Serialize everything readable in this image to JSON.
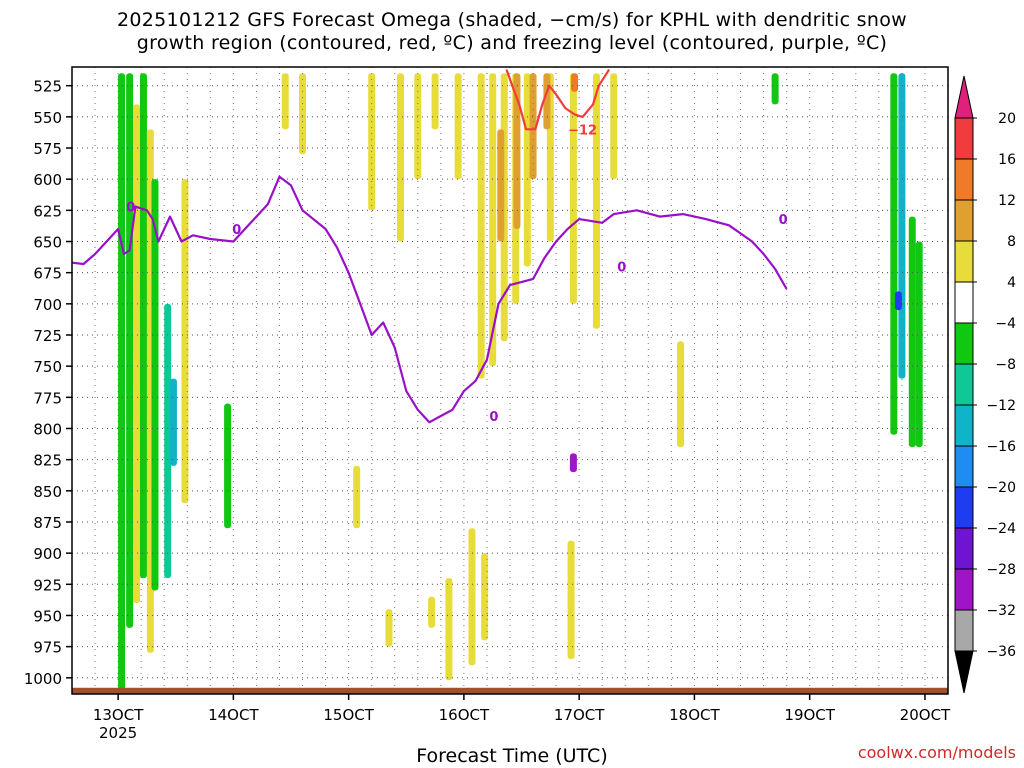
{
  "chart_data": {
    "type": "heatmap",
    "title_line1": "2025101212 GFS Forecast Omega (shaded, −cm/s) for KPHL with dendritic snow",
    "title_line2": "growth region (contoured, red, ºC) and freezing level (contoured, purple, ºC)",
    "xlabel": "Forecast Time (UTC)",
    "credit": "coolwx.com/models",
    "x_axis": {
      "unit": "hours since 2025-10-13 00 UTC",
      "range": [
        -4,
        72
      ],
      "ticks": [
        {
          "hour": 0,
          "label": "13OCT",
          "sublabel": "2025"
        },
        {
          "hour": 10,
          "label": "14OCT"
        },
        {
          "hour": 20,
          "label": "15OCT"
        },
        {
          "hour": 30,
          "label": "16OCT"
        },
        {
          "hour": 40,
          "label": "17OCT"
        },
        {
          "hour": 50,
          "label": "18OCT"
        },
        {
          "hour": 60,
          "label": "19OCT"
        },
        {
          "hour": 70,
          "label": "20OCT"
        }
      ]
    },
    "y_axis": {
      "unit": "hPa",
      "range": [
        1013,
        510
      ],
      "ticks": [
        525,
        550,
        575,
        600,
        625,
        650,
        675,
        700,
        725,
        750,
        775,
        800,
        825,
        850,
        875,
        900,
        925,
        950,
        975,
        1000
      ],
      "grid": true
    },
    "colorbar": {
      "labels": [
        "20",
        "16",
        "12",
        "8",
        "4",
        "−4",
        "−8",
        "−12",
        "−16",
        "−20",
        "−24",
        "−28",
        "−32",
        "−36"
      ],
      "colors": [
        "#e0207a",
        "#f03c3c",
        "#f07a28",
        "#e0a030",
        "#e8dc3a",
        "#ffffff",
        "#10c810",
        "#10c896",
        "#10b4c8",
        "#1e8cf0",
        "#1e3cf0",
        "#6e14d2",
        "#a014c8",
        "#a8a8a8",
        "#000000"
      ]
    },
    "shading": [
      {
        "t": 0.3,
        "p1": 515,
        "p2": 1012,
        "color": "#10c810"
      },
      {
        "t": 1.0,
        "p1": 515,
        "p2": 960,
        "color": "#10c810"
      },
      {
        "t": 1.6,
        "p1": 540,
        "p2": 940,
        "color": "#e8dc3a"
      },
      {
        "t": 2.2,
        "p1": 515,
        "p2": 920,
        "color": "#10c810"
      },
      {
        "t": 2.8,
        "p1": 560,
        "p2": 980,
        "color": "#e8dc3a"
      },
      {
        "t": 3.2,
        "p1": 600,
        "p2": 930,
        "color": "#10c810"
      },
      {
        "t": 4.3,
        "p1": 700,
        "p2": 920,
        "color": "#10c896"
      },
      {
        "t": 4.8,
        "p1": 760,
        "p2": 830,
        "color": "#10b4c8"
      },
      {
        "t": 5.8,
        "p1": 600,
        "p2": 860,
        "color": "#e8dc3a"
      },
      {
        "t": 9.5,
        "p1": 780,
        "p2": 880,
        "color": "#10c810"
      },
      {
        "t": 14.5,
        "p1": 515,
        "p2": 560,
        "color": "#e8dc3a"
      },
      {
        "t": 16.0,
        "p1": 515,
        "p2": 580,
        "color": "#e8dc3a"
      },
      {
        "t": 20.7,
        "p1": 830,
        "p2": 880,
        "color": "#e8dc3a"
      },
      {
        "t": 22.0,
        "p1": 515,
        "p2": 625,
        "color": "#e8dc3a"
      },
      {
        "t": 24.5,
        "p1": 515,
        "p2": 650,
        "color": "#e8dc3a"
      },
      {
        "t": 26.0,
        "p1": 515,
        "p2": 600,
        "color": "#e8dc3a"
      },
      {
        "t": 27.5,
        "p1": 515,
        "p2": 560,
        "color": "#e8dc3a"
      },
      {
        "t": 29.5,
        "p1": 515,
        "p2": 600,
        "color": "#e8dc3a"
      },
      {
        "t": 31.5,
        "p1": 515,
        "p2": 760,
        "color": "#e8dc3a"
      },
      {
        "t": 32.5,
        "p1": 515,
        "p2": 750,
        "color": "#e8dc3a"
      },
      {
        "t": 33.5,
        "p1": 515,
        "p2": 730,
        "color": "#e8dc3a"
      },
      {
        "t": 34.5,
        "p1": 515,
        "p2": 700,
        "color": "#e8dc3a"
      },
      {
        "t": 35.5,
        "p1": 515,
        "p2": 670,
        "color": "#e8dc3a"
      },
      {
        "t": 37.5,
        "p1": 515,
        "p2": 650,
        "color": "#e8dc3a"
      },
      {
        "t": 39.5,
        "p1": 515,
        "p2": 700,
        "color": "#e8dc3a"
      },
      {
        "t": 41.5,
        "p1": 515,
        "p2": 720,
        "color": "#e8dc3a"
      },
      {
        "t": 43.0,
        "p1": 515,
        "p2": 600,
        "color": "#e8dc3a"
      },
      {
        "t": 33.2,
        "p1": 560,
        "p2": 650,
        "color": "#e0a030"
      },
      {
        "t": 34.6,
        "p1": 515,
        "p2": 640,
        "color": "#e0a030"
      },
      {
        "t": 36.0,
        "p1": 515,
        "p2": 600,
        "color": "#e0a030"
      },
      {
        "t": 37.2,
        "p1": 515,
        "p2": 560,
        "color": "#e0a030"
      },
      {
        "t": 39.6,
        "p1": 515,
        "p2": 530,
        "color": "#f07a28"
      },
      {
        "t": 28.7,
        "p1": 920,
        "p2": 1002,
        "color": "#e8dc3a"
      },
      {
        "t": 30.7,
        "p1": 880,
        "p2": 990,
        "color": "#e8dc3a"
      },
      {
        "t": 31.8,
        "p1": 900,
        "p2": 970,
        "color": "#e8dc3a"
      },
      {
        "t": 27.2,
        "p1": 935,
        "p2": 960,
        "color": "#e8dc3a"
      },
      {
        "t": 23.5,
        "p1": 945,
        "p2": 975,
        "color": "#e8dc3a"
      },
      {
        "t": 39.3,
        "p1": 890,
        "p2": 985,
        "color": "#e8dc3a"
      },
      {
        "t": 39.5,
        "p1": 820,
        "p2": 835,
        "color": "#a014c8"
      },
      {
        "t": 48.8,
        "p1": 730,
        "p2": 815,
        "color": "#e8dc3a"
      },
      {
        "t": 57.0,
        "p1": 515,
        "p2": 540,
        "color": "#10c810"
      },
      {
        "t": 67.3,
        "p1": 515,
        "p2": 805,
        "color": "#10c810"
      },
      {
        "t": 68.0,
        "p1": 515,
        "p2": 760,
        "color": "#10b4c8"
      },
      {
        "t": 68.9,
        "p1": 630,
        "p2": 815,
        "color": "#10c810"
      },
      {
        "t": 69.5,
        "p1": 650,
        "p2": 815,
        "color": "#10c810"
      },
      {
        "t": 67.7,
        "p1": 690,
        "p2": 705,
        "color": "#1e3cf0"
      }
    ],
    "series": [
      {
        "name": "0",
        "color": "#9a10c8",
        "label_at": [
          [
            1.1,
            622
          ],
          [
            10.3,
            640
          ],
          [
            32.6,
            790
          ],
          [
            43.7,
            670
          ],
          [
            57.7,
            632
          ]
        ],
        "points": [
          [
            -4,
            667
          ],
          [
            -3,
            668
          ],
          [
            -2,
            660
          ],
          [
            -1,
            650
          ],
          [
            0,
            640
          ],
          [
            0.5,
            660
          ],
          [
            1,
            657
          ],
          [
            1.5,
            622
          ],
          [
            2.5,
            625
          ],
          [
            3.0,
            632
          ],
          [
            3.5,
            650
          ],
          [
            4.5,
            630
          ],
          [
            5.5,
            650
          ],
          [
            6.5,
            645
          ],
          [
            8,
            648
          ],
          [
            10,
            650
          ],
          [
            11,
            640
          ],
          [
            12,
            630
          ],
          [
            13,
            620
          ],
          [
            14,
            598
          ],
          [
            15,
            605
          ],
          [
            16,
            625
          ],
          [
            18,
            640
          ],
          [
            19,
            655
          ],
          [
            20,
            675
          ],
          [
            21,
            700
          ],
          [
            22,
            725
          ],
          [
            23,
            715
          ],
          [
            24,
            735
          ],
          [
            25,
            770
          ],
          [
            26,
            785
          ],
          [
            27,
            795
          ],
          [
            28,
            790
          ],
          [
            29,
            785
          ],
          [
            30,
            770
          ],
          [
            31,
            762
          ],
          [
            32,
            745
          ],
          [
            33,
            700
          ],
          [
            34,
            685
          ],
          [
            36,
            680
          ],
          [
            37,
            663
          ],
          [
            38,
            650
          ],
          [
            39,
            640
          ],
          [
            40,
            632
          ],
          [
            42,
            635
          ],
          [
            43,
            628
          ],
          [
            45,
            625
          ],
          [
            47,
            630
          ],
          [
            49,
            628
          ],
          [
            51,
            632
          ],
          [
            53,
            637
          ],
          [
            55,
            650
          ],
          [
            56,
            660
          ],
          [
            57,
            672
          ],
          [
            58,
            688
          ]
        ]
      },
      {
        "name": "−12",
        "color": "#f03c3c",
        "label_at": [
          [
            40.3,
            560
          ]
        ],
        "points": [
          [
            33.7,
            512
          ],
          [
            34.2,
            525
          ],
          [
            34.8,
            540
          ],
          [
            35.4,
            560
          ],
          [
            36.2,
            560
          ],
          [
            36.8,
            540
          ],
          [
            37.4,
            525
          ],
          [
            38.0,
            532
          ],
          [
            38.8,
            543
          ],
          [
            39.6,
            548
          ],
          [
            40.3,
            550
          ],
          [
            41.2,
            540
          ],
          [
            41.7,
            525
          ],
          [
            42.4,
            515
          ],
          [
            42.6,
            512
          ]
        ]
      }
    ],
    "ground_color": "#a0522d"
  }
}
